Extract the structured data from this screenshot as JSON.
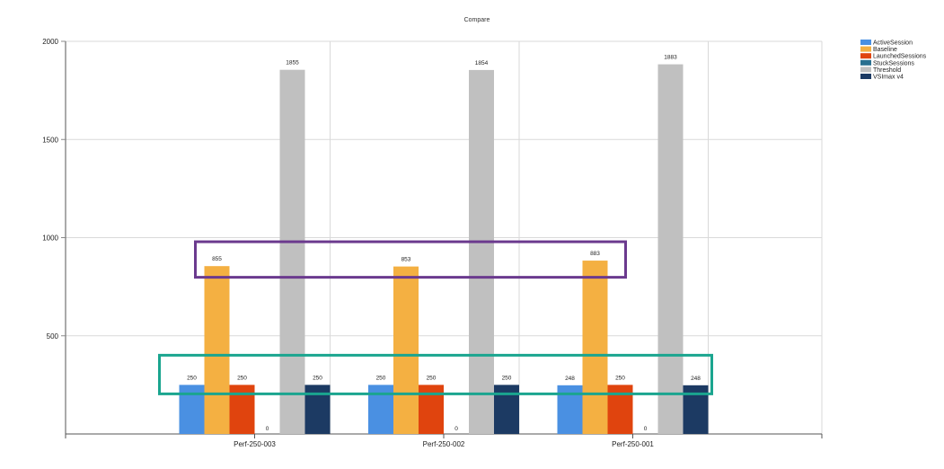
{
  "chart_data": {
    "type": "bar",
    "title": "Compare",
    "xlabel": "",
    "ylabel": "",
    "ylim": [
      0,
      2000
    ],
    "yticks": [
      500,
      1000,
      1500,
      2000
    ],
    "grid": true,
    "legend_position": "top-right",
    "categories": [
      "Perf-250-003",
      "Perf-250-002",
      "Perf-250-001"
    ],
    "series": [
      {
        "name": "ActiveSession",
        "color": "#4a90e2",
        "values": [
          250,
          250,
          248
        ]
      },
      {
        "name": "Baseline",
        "color": "#f4b042",
        "values": [
          855,
          853,
          883
        ]
      },
      {
        "name": "LaunchedSessions",
        "color": "#e0440e",
        "values": [
          250,
          250,
          250
        ]
      },
      {
        "name": "StuckSessions",
        "color": "#2a6f8f",
        "values": [
          0,
          0,
          0
        ]
      },
      {
        "name": "Threshold",
        "color": "#c0c0c0",
        "values": [
          1855,
          1854,
          1883
        ]
      },
      {
        "name": "VSImax v4",
        "color": "#1c3a63",
        "values": [
          250,
          250,
          248
        ]
      }
    ],
    "annotations": [
      {
        "name": "baseline-highlight",
        "color": "#6b3a8e"
      },
      {
        "name": "sessions-highlight",
        "color": "#1aa58f"
      }
    ]
  }
}
